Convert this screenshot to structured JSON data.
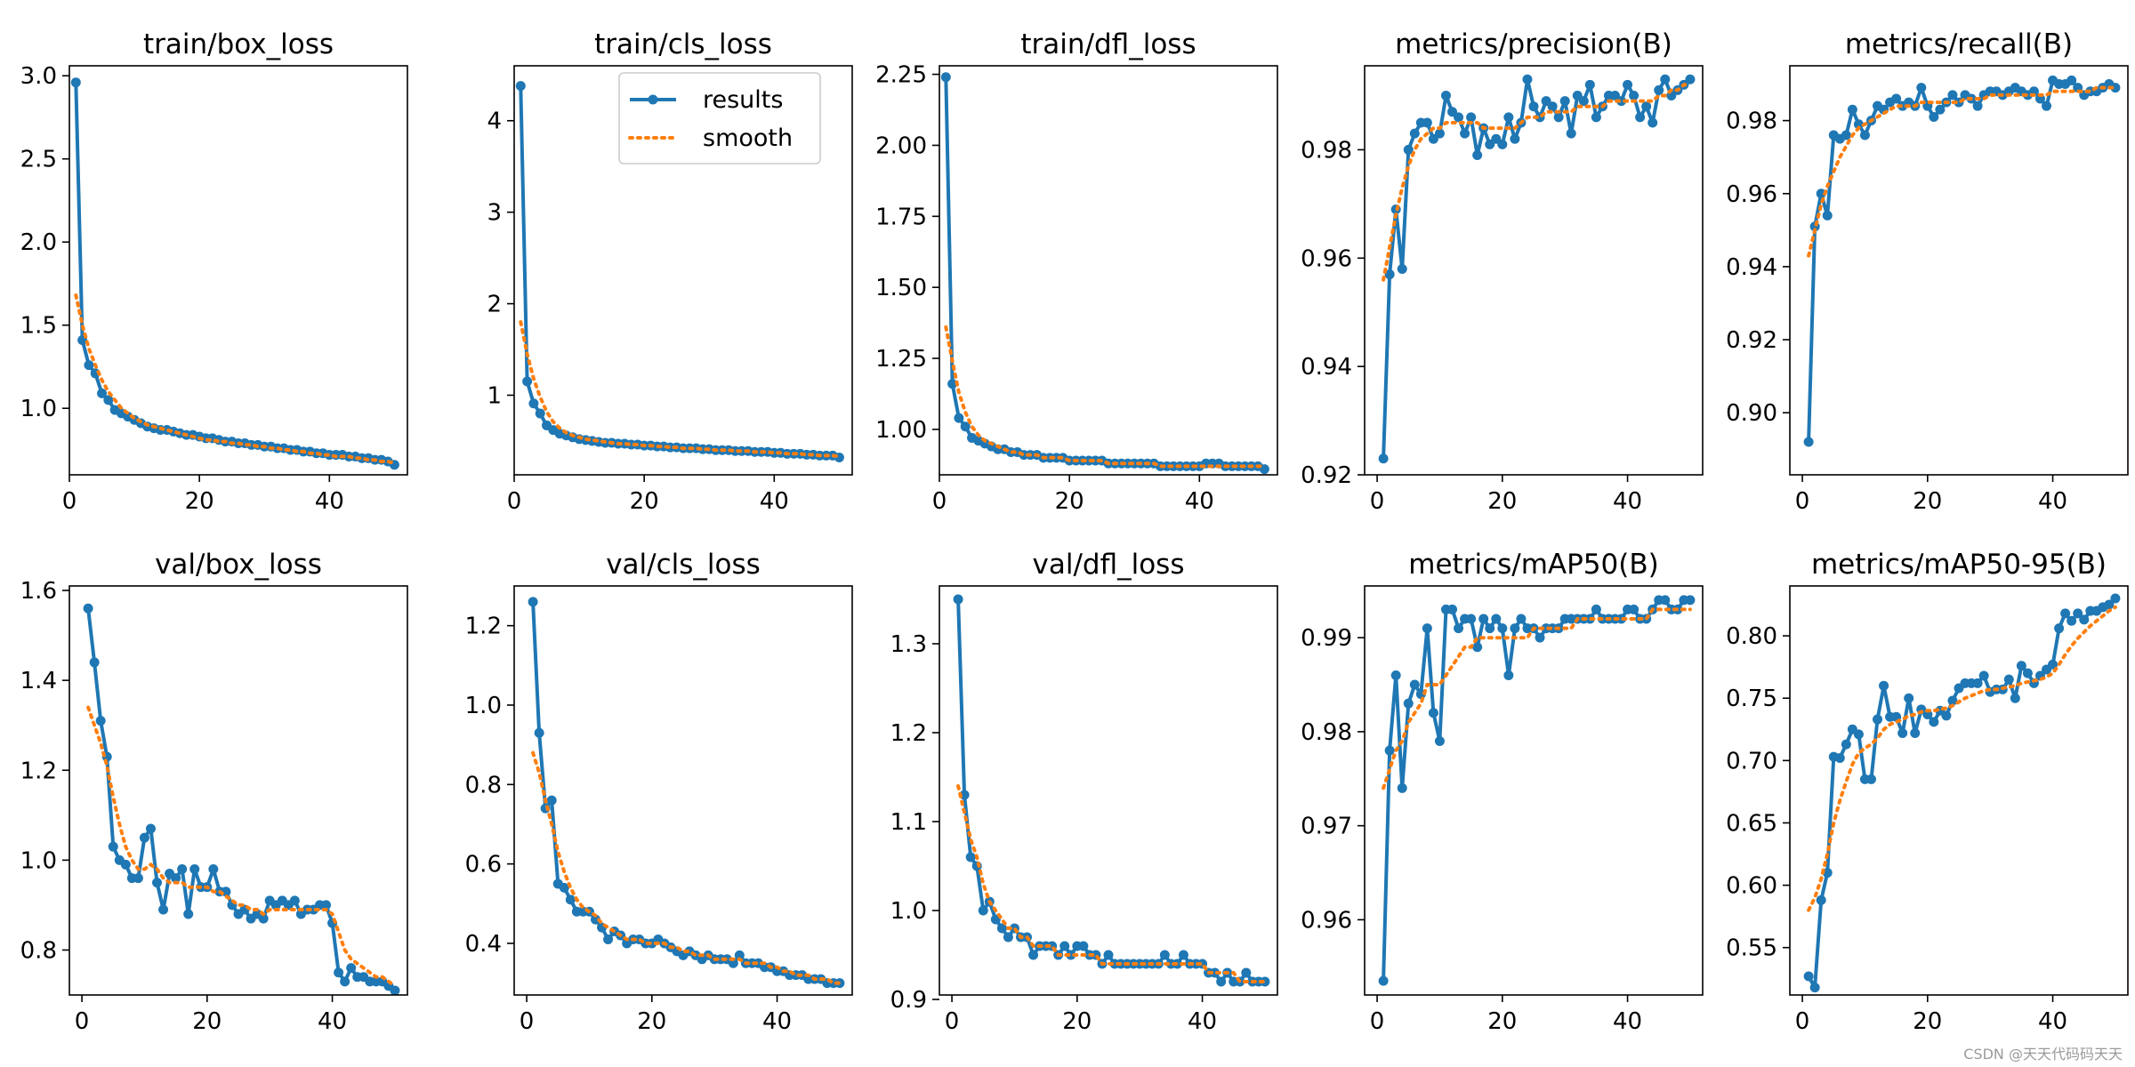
{
  "legend": {
    "results_label": "results",
    "smooth_label": "smooth"
  },
  "colors": {
    "results": "#1f77b4",
    "smooth": "#ff7f0e"
  },
  "watermark": "CSDN @天天代码码天天",
  "chart_data": [
    {
      "type": "line",
      "title": "train/box_loss",
      "xlim": [
        0,
        52
      ],
      "ylim": [
        0.6,
        3.06
      ],
      "xticks": [
        0,
        20,
        40
      ],
      "yticks": [
        1.0,
        1.5,
        2.0,
        2.5,
        3.0
      ],
      "ytick_labels": [
        "1.0",
        "1.5",
        "2.0",
        "2.5",
        "3.0"
      ],
      "x_start": 1,
      "values": [
        2.96,
        1.41,
        1.26,
        1.21,
        1.09,
        1.05,
        0.99,
        0.97,
        0.95,
        0.93,
        0.91,
        0.89,
        0.88,
        0.87,
        0.87,
        0.86,
        0.85,
        0.84,
        0.84,
        0.83,
        0.82,
        0.82,
        0.81,
        0.8,
        0.8,
        0.79,
        0.79,
        0.78,
        0.78,
        0.77,
        0.77,
        0.76,
        0.76,
        0.75,
        0.75,
        0.74,
        0.74,
        0.73,
        0.73,
        0.72,
        0.72,
        0.72,
        0.71,
        0.71,
        0.7,
        0.7,
        0.69,
        0.69,
        0.68,
        0.66
      ],
      "smooth": [
        1.68,
        1.5,
        1.36,
        1.26,
        1.17,
        1.1,
        1.05,
        1.0,
        0.97,
        0.94,
        0.92,
        0.9,
        0.89,
        0.88,
        0.87,
        0.86,
        0.85,
        0.84,
        0.83,
        0.82,
        0.81,
        0.81,
        0.8,
        0.8,
        0.79,
        0.79,
        0.78,
        0.78,
        0.77,
        0.77,
        0.76,
        0.76,
        0.75,
        0.75,
        0.74,
        0.74,
        0.73,
        0.73,
        0.72,
        0.72,
        0.71,
        0.71,
        0.71,
        0.7,
        0.7,
        0.69,
        0.69,
        0.68,
        0.68,
        0.67
      ]
    },
    {
      "type": "line",
      "title": "train/cls_loss",
      "xlim": [
        0,
        52
      ],
      "ylim": [
        0.13,
        4.6
      ],
      "legend": true,
      "xticks": [
        0,
        20,
        40
      ],
      "yticks": [
        1,
        2,
        3,
        4
      ],
      "ytick_labels": [
        "1",
        "2",
        "3",
        "4"
      ],
      "x_start": 1,
      "values": [
        4.38,
        1.15,
        0.91,
        0.8,
        0.67,
        0.62,
        0.58,
        0.56,
        0.54,
        0.52,
        0.51,
        0.5,
        0.49,
        0.48,
        0.48,
        0.47,
        0.47,
        0.46,
        0.46,
        0.45,
        0.45,
        0.44,
        0.44,
        0.43,
        0.43,
        0.42,
        0.42,
        0.42,
        0.41,
        0.41,
        0.4,
        0.4,
        0.4,
        0.39,
        0.39,
        0.39,
        0.38,
        0.38,
        0.38,
        0.37,
        0.37,
        0.36,
        0.36,
        0.36,
        0.35,
        0.35,
        0.34,
        0.34,
        0.34,
        0.32
      ],
      "smooth": [
        1.8,
        1.45,
        1.18,
        0.98,
        0.82,
        0.71,
        0.64,
        0.59,
        0.56,
        0.54,
        0.52,
        0.51,
        0.5,
        0.49,
        0.48,
        0.47,
        0.47,
        0.46,
        0.46,
        0.45,
        0.45,
        0.44,
        0.44,
        0.43,
        0.43,
        0.42,
        0.42,
        0.42,
        0.41,
        0.41,
        0.4,
        0.4,
        0.4,
        0.39,
        0.39,
        0.39,
        0.38,
        0.38,
        0.38,
        0.37,
        0.37,
        0.36,
        0.36,
        0.36,
        0.35,
        0.35,
        0.34,
        0.34,
        0.34,
        0.33
      ]
    },
    {
      "type": "line",
      "title": "train/dfl_loss",
      "xlim": [
        0,
        52
      ],
      "ylim": [
        0.84,
        2.28
      ],
      "xticks": [
        0,
        20,
        40
      ],
      "yticks": [
        1.0,
        1.25,
        1.5,
        1.75,
        2.0,
        2.25
      ],
      "ytick_labels": [
        "1.00",
        "1.25",
        "1.50",
        "1.75",
        "2.00",
        "2.25"
      ],
      "x_start": 1,
      "values": [
        2.24,
        1.16,
        1.04,
        1.01,
        0.97,
        0.96,
        0.95,
        0.94,
        0.93,
        0.93,
        0.92,
        0.92,
        0.91,
        0.91,
        0.91,
        0.9,
        0.9,
        0.9,
        0.9,
        0.89,
        0.89,
        0.89,
        0.89,
        0.89,
        0.89,
        0.88,
        0.88,
        0.88,
        0.88,
        0.88,
        0.88,
        0.88,
        0.88,
        0.87,
        0.87,
        0.87,
        0.87,
        0.87,
        0.87,
        0.87,
        0.88,
        0.88,
        0.88,
        0.87,
        0.87,
        0.87,
        0.87,
        0.87,
        0.87,
        0.86
      ],
      "smooth": [
        1.36,
        1.24,
        1.13,
        1.06,
        1.01,
        0.98,
        0.96,
        0.95,
        0.94,
        0.93,
        0.92,
        0.92,
        0.91,
        0.91,
        0.91,
        0.9,
        0.9,
        0.9,
        0.9,
        0.89,
        0.89,
        0.89,
        0.89,
        0.89,
        0.89,
        0.88,
        0.88,
        0.88,
        0.88,
        0.88,
        0.88,
        0.88,
        0.88,
        0.87,
        0.87,
        0.87,
        0.87,
        0.87,
        0.87,
        0.87,
        0.87,
        0.87,
        0.87,
        0.87,
        0.87,
        0.87,
        0.87,
        0.87,
        0.87,
        0.87
      ]
    },
    {
      "type": "line",
      "title": "metrics/precision(B)",
      "xlim": [
        -2,
        52
      ],
      "ylim": [
        0.92,
        0.9955
      ],
      "xticks": [
        0,
        20,
        40
      ],
      "yticks": [
        0.92,
        0.94,
        0.96,
        0.98
      ],
      "ytick_labels": [
        "0.92",
        "0.94",
        "0.96",
        "0.98"
      ],
      "x_start": 1,
      "values": [
        0.923,
        0.957,
        0.969,
        0.958,
        0.98,
        0.983,
        0.985,
        0.985,
        0.982,
        0.983,
        0.99,
        0.987,
        0.986,
        0.983,
        0.986,
        0.979,
        0.984,
        0.981,
        0.982,
        0.981,
        0.986,
        0.982,
        0.985,
        0.993,
        0.988,
        0.986,
        0.989,
        0.988,
        0.986,
        0.989,
        0.983,
        0.99,
        0.989,
        0.992,
        0.986,
        0.988,
        0.99,
        0.99,
        0.989,
        0.992,
        0.99,
        0.986,
        0.988,
        0.985,
        0.991,
        0.993,
        0.99,
        0.991,
        0.992,
        0.993
      ],
      "smooth": [
        0.956,
        0.962,
        0.968,
        0.973,
        0.977,
        0.98,
        0.982,
        0.983,
        0.984,
        0.984,
        0.985,
        0.985,
        0.985,
        0.985,
        0.985,
        0.985,
        0.984,
        0.984,
        0.984,
        0.984,
        0.984,
        0.984,
        0.985,
        0.986,
        0.986,
        0.986,
        0.987,
        0.987,
        0.987,
        0.987,
        0.987,
        0.988,
        0.988,
        0.988,
        0.988,
        0.988,
        0.989,
        0.989,
        0.989,
        0.989,
        0.989,
        0.989,
        0.989,
        0.989,
        0.99,
        0.99,
        0.991,
        0.991,
        0.992,
        0.992
      ]
    },
    {
      "type": "line",
      "title": "metrics/recall(B)",
      "xlim": [
        -2,
        52
      ],
      "ylim": [
        0.883,
        0.995
      ],
      "xticks": [
        0,
        20,
        40
      ],
      "yticks": [
        0.9,
        0.92,
        0.94,
        0.96,
        0.98
      ],
      "ytick_labels": [
        "0.90",
        "0.92",
        "0.94",
        "0.96",
        "0.98"
      ],
      "x_start": 1,
      "values": [
        0.892,
        0.951,
        0.96,
        0.954,
        0.976,
        0.975,
        0.976,
        0.983,
        0.979,
        0.976,
        0.98,
        0.984,
        0.983,
        0.985,
        0.986,
        0.984,
        0.985,
        0.984,
        0.989,
        0.984,
        0.981,
        0.983,
        0.985,
        0.987,
        0.985,
        0.987,
        0.986,
        0.984,
        0.987,
        0.988,
        0.988,
        0.987,
        0.988,
        0.989,
        0.988,
        0.987,
        0.988,
        0.986,
        0.984,
        0.991,
        0.99,
        0.99,
        0.991,
        0.989,
        0.987,
        0.988,
        0.988,
        0.989,
        0.99,
        0.989
      ],
      "smooth": [
        0.943,
        0.95,
        0.957,
        0.962,
        0.966,
        0.97,
        0.973,
        0.976,
        0.978,
        0.979,
        0.98,
        0.981,
        0.982,
        0.983,
        0.984,
        0.984,
        0.984,
        0.984,
        0.985,
        0.985,
        0.985,
        0.985,
        0.985,
        0.985,
        0.985,
        0.986,
        0.986,
        0.986,
        0.986,
        0.987,
        0.987,
        0.987,
        0.987,
        0.987,
        0.987,
        0.987,
        0.987,
        0.987,
        0.987,
        0.988,
        0.988,
        0.988,
        0.988,
        0.988,
        0.988,
        0.988,
        0.989,
        0.989,
        0.989,
        0.989
      ]
    },
    {
      "type": "line",
      "title": "val/box_loss",
      "xlim": [
        -2,
        52
      ],
      "ylim": [
        0.7,
        1.61
      ],
      "xticks": [
        0,
        20,
        40
      ],
      "yticks": [
        0.8,
        1.0,
        1.2,
        1.4,
        1.6
      ],
      "ytick_labels": [
        "0.8",
        "1.0",
        "1.2",
        "1.4",
        "1.6"
      ],
      "x_start": 1,
      "values": [
        1.56,
        1.44,
        1.31,
        1.23,
        1.03,
        1.0,
        0.99,
        0.96,
        0.96,
        1.05,
        1.07,
        0.95,
        0.89,
        0.97,
        0.96,
        0.98,
        0.88,
        0.98,
        0.94,
        0.94,
        0.98,
        0.93,
        0.93,
        0.9,
        0.88,
        0.89,
        0.87,
        0.88,
        0.87,
        0.91,
        0.9,
        0.91,
        0.9,
        0.91,
        0.88,
        0.89,
        0.89,
        0.9,
        0.9,
        0.86,
        0.75,
        0.73,
        0.76,
        0.74,
        0.74,
        0.73,
        0.73,
        0.73,
        0.72,
        0.71
      ],
      "smooth": [
        1.34,
        1.3,
        1.26,
        1.21,
        1.14,
        1.08,
        1.03,
        1.0,
        0.98,
        0.98,
        0.99,
        0.98,
        0.96,
        0.95,
        0.95,
        0.95,
        0.94,
        0.94,
        0.94,
        0.94,
        0.93,
        0.93,
        0.92,
        0.91,
        0.9,
        0.9,
        0.89,
        0.89,
        0.88,
        0.89,
        0.89,
        0.89,
        0.89,
        0.89,
        0.89,
        0.89,
        0.89,
        0.89,
        0.89,
        0.88,
        0.84,
        0.8,
        0.78,
        0.77,
        0.76,
        0.75,
        0.74,
        0.74,
        0.73,
        0.72
      ]
    },
    {
      "type": "line",
      "title": "val/cls_loss",
      "xlim": [
        -2,
        52
      ],
      "ylim": [
        0.27,
        1.3
      ],
      "xticks": [
        0,
        20,
        40
      ],
      "yticks": [
        0.4,
        0.6,
        0.8,
        1.0,
        1.2
      ],
      "ytick_labels": [
        "0.4",
        "0.6",
        "0.8",
        "1.0",
        "1.2"
      ],
      "x_start": 1,
      "values": [
        1.26,
        0.93,
        0.74,
        0.76,
        0.55,
        0.54,
        0.51,
        0.48,
        0.48,
        0.48,
        0.46,
        0.44,
        0.41,
        0.43,
        0.42,
        0.4,
        0.41,
        0.41,
        0.4,
        0.4,
        0.41,
        0.4,
        0.39,
        0.38,
        0.37,
        0.38,
        0.37,
        0.36,
        0.37,
        0.36,
        0.36,
        0.36,
        0.35,
        0.37,
        0.35,
        0.35,
        0.35,
        0.34,
        0.34,
        0.33,
        0.33,
        0.32,
        0.32,
        0.32,
        0.31,
        0.31,
        0.31,
        0.3,
        0.3,
        0.3
      ],
      "smooth": [
        0.88,
        0.83,
        0.76,
        0.7,
        0.63,
        0.58,
        0.54,
        0.51,
        0.49,
        0.48,
        0.47,
        0.45,
        0.44,
        0.43,
        0.42,
        0.41,
        0.41,
        0.41,
        0.4,
        0.4,
        0.4,
        0.4,
        0.39,
        0.39,
        0.38,
        0.38,
        0.37,
        0.37,
        0.37,
        0.36,
        0.36,
        0.36,
        0.36,
        0.36,
        0.35,
        0.35,
        0.35,
        0.35,
        0.34,
        0.34,
        0.33,
        0.33,
        0.32,
        0.32,
        0.32,
        0.31,
        0.31,
        0.31,
        0.3,
        0.3
      ]
    },
    {
      "type": "line",
      "title": "val/dfl_loss",
      "xlim": [
        -2,
        52
      ],
      "ylim": [
        0.905,
        1.365
      ],
      "xticks": [
        0,
        20,
        40
      ],
      "yticks": [
        0.9,
        1.0,
        1.1,
        1.2,
        1.3
      ],
      "ytick_labels": [
        "0.9",
        "1.0",
        "1.1",
        "1.2",
        "1.3"
      ],
      "x_start": 1,
      "values": [
        1.35,
        1.13,
        1.06,
        1.05,
        1.0,
        1.01,
        0.99,
        0.98,
        0.97,
        0.98,
        0.97,
        0.97,
        0.95,
        0.96,
        0.96,
        0.96,
        0.95,
        0.96,
        0.95,
        0.96,
        0.96,
        0.95,
        0.95,
        0.94,
        0.95,
        0.94,
        0.94,
        0.94,
        0.94,
        0.94,
        0.94,
        0.94,
        0.94,
        0.95,
        0.94,
        0.94,
        0.95,
        0.94,
        0.94,
        0.94,
        0.93,
        0.93,
        0.92,
        0.93,
        0.92,
        0.92,
        0.93,
        0.92,
        0.92,
        0.92
      ],
      "smooth": [
        1.14,
        1.11,
        1.08,
        1.06,
        1.03,
        1.01,
        1.0,
        0.99,
        0.98,
        0.98,
        0.97,
        0.97,
        0.96,
        0.96,
        0.96,
        0.96,
        0.95,
        0.95,
        0.95,
        0.95,
        0.95,
        0.95,
        0.95,
        0.94,
        0.94,
        0.94,
        0.94,
        0.94,
        0.94,
        0.94,
        0.94,
        0.94,
        0.94,
        0.94,
        0.94,
        0.94,
        0.94,
        0.94,
        0.94,
        0.94,
        0.93,
        0.93,
        0.93,
        0.93,
        0.93,
        0.92,
        0.92,
        0.92,
        0.92,
        0.92
      ]
    },
    {
      "type": "line",
      "title": "metrics/mAP50(B)",
      "xlim": [
        -2,
        52
      ],
      "ylim": [
        0.952,
        0.9955
      ],
      "xticks": [
        0,
        20,
        40
      ],
      "yticks": [
        0.96,
        0.97,
        0.98,
        0.99
      ],
      "ytick_labels": [
        "0.96",
        "0.97",
        "0.98",
        "0.99"
      ],
      "x_start": 1,
      "values": [
        0.9535,
        0.978,
        0.986,
        0.974,
        0.983,
        0.985,
        0.984,
        0.991,
        0.982,
        0.979,
        0.993,
        0.993,
        0.991,
        0.992,
        0.992,
        0.989,
        0.992,
        0.991,
        0.992,
        0.991,
        0.986,
        0.991,
        0.992,
        0.991,
        0.991,
        0.99,
        0.991,
        0.991,
        0.991,
        0.992,
        0.992,
        0.992,
        0.992,
        0.992,
        0.993,
        0.992,
        0.992,
        0.992,
        0.992,
        0.993,
        0.993,
        0.992,
        0.992,
        0.993,
        0.994,
        0.994,
        0.993,
        0.993,
        0.994,
        0.994
      ],
      "smooth": [
        0.974,
        0.976,
        0.978,
        0.979,
        0.981,
        0.982,
        0.983,
        0.985,
        0.985,
        0.985,
        0.986,
        0.987,
        0.988,
        0.989,
        0.989,
        0.99,
        0.99,
        0.99,
        0.99,
        0.99,
        0.99,
        0.99,
        0.99,
        0.99,
        0.991,
        0.991,
        0.991,
        0.991,
        0.991,
        0.991,
        0.991,
        0.992,
        0.992,
        0.992,
        0.992,
        0.992,
        0.992,
        0.992,
        0.992,
        0.992,
        0.992,
        0.992,
        0.992,
        0.993,
        0.993,
        0.993,
        0.993,
        0.993,
        0.993,
        0.993
      ]
    },
    {
      "type": "line",
      "title": "metrics/mAP50-95(B)",
      "xlim": [
        -2,
        52
      ],
      "ylim": [
        0.512,
        0.84
      ],
      "xticks": [
        0,
        20,
        40
      ],
      "yticks": [
        0.55,
        0.6,
        0.65,
        0.7,
        0.75,
        0.8
      ],
      "ytick_labels": [
        "0.55",
        "0.60",
        "0.65",
        "0.70",
        "0.75",
        "0.80"
      ],
      "x_start": 1,
      "values": [
        0.527,
        0.518,
        0.588,
        0.61,
        0.703,
        0.702,
        0.713,
        0.725,
        0.721,
        0.685,
        0.685,
        0.733,
        0.76,
        0.735,
        0.735,
        0.722,
        0.75,
        0.722,
        0.741,
        0.737,
        0.731,
        0.74,
        0.736,
        0.748,
        0.758,
        0.762,
        0.762,
        0.762,
        0.768,
        0.755,
        0.757,
        0.757,
        0.765,
        0.75,
        0.776,
        0.77,
        0.762,
        0.768,
        0.773,
        0.777,
        0.806,
        0.818,
        0.812,
        0.818,
        0.813,
        0.82,
        0.82,
        0.823,
        0.825,
        0.83
      ],
      "smooth": [
        0.58,
        0.59,
        0.605,
        0.625,
        0.65,
        0.668,
        0.683,
        0.697,
        0.706,
        0.71,
        0.713,
        0.718,
        0.725,
        0.729,
        0.731,
        0.733,
        0.736,
        0.737,
        0.739,
        0.74,
        0.74,
        0.741,
        0.742,
        0.744,
        0.747,
        0.75,
        0.752,
        0.754,
        0.756,
        0.757,
        0.757,
        0.758,
        0.759,
        0.76,
        0.762,
        0.763,
        0.764,
        0.765,
        0.767,
        0.77,
        0.777,
        0.785,
        0.792,
        0.798,
        0.803,
        0.808,
        0.812,
        0.816,
        0.82,
        0.823
      ]
    }
  ]
}
